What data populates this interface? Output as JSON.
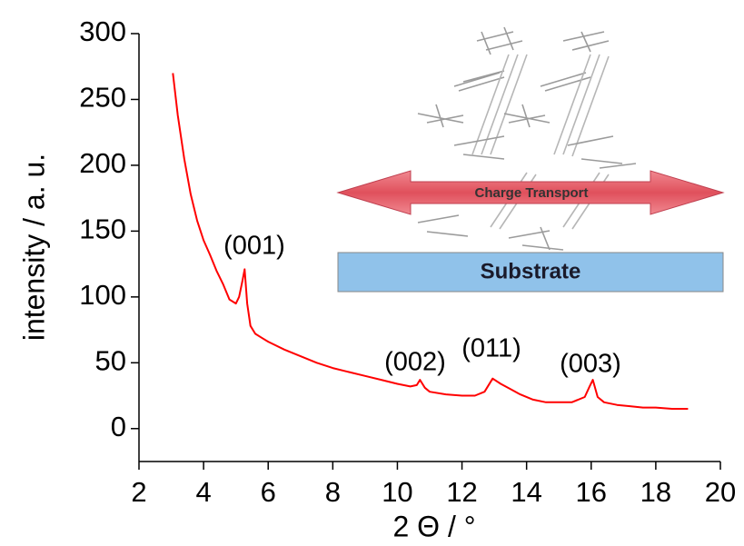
{
  "chart_data": {
    "type": "line",
    "x_label": "2 Θ / °",
    "y_label": "intensity / a. u.",
    "color": "#ff0000",
    "x": [
      3.05,
      3.2,
      3.4,
      3.6,
      3.8,
      4.0,
      4.2,
      4.4,
      4.6,
      4.8,
      5.0,
      5.1,
      5.2,
      5.27,
      5.35,
      5.45,
      5.6,
      5.8,
      6.0,
      6.5,
      7.0,
      7.5,
      8.0,
      8.5,
      9.0,
      9.5,
      10.0,
      10.4,
      10.6,
      10.7,
      10.85,
      11.0,
      11.5,
      12.0,
      12.4,
      12.7,
      12.95,
      13.2,
      13.5,
      13.8,
      14.2,
      14.6,
      15.0,
      15.4,
      15.8,
      15.95,
      16.05,
      16.2,
      16.4,
      16.8,
      17.2,
      17.6,
      18.0,
      18.5,
      19.0
    ],
    "values": [
      270,
      238,
      205,
      178,
      158,
      143,
      132,
      120,
      110,
      98,
      95,
      100,
      112,
      121,
      95,
      78,
      72,
      69,
      66,
      60,
      55,
      50,
      46,
      43,
      40,
      37,
      34,
      32,
      33,
      37,
      31,
      28,
      26,
      25,
      25,
      28,
      38,
      34,
      30,
      26,
      22,
      20,
      20,
      20,
      24,
      32,
      37,
      24,
      20,
      18,
      17,
      16,
      16,
      15,
      15
    ],
    "xlim": [
      2,
      20
    ],
    "xticks": [
      2,
      4,
      6,
      8,
      10,
      12,
      14,
      16,
      18,
      20
    ],
    "ylim": [
      -25,
      300
    ],
    "yticks": [
      0,
      50,
      100,
      150,
      200,
      250,
      300
    ],
    "annotations": [
      "(001)",
      "(002)",
      "(011)",
      "(003)"
    ],
    "inset": {
      "arrow_label": "Charge Transport",
      "substrate_label": "Substrate"
    }
  }
}
